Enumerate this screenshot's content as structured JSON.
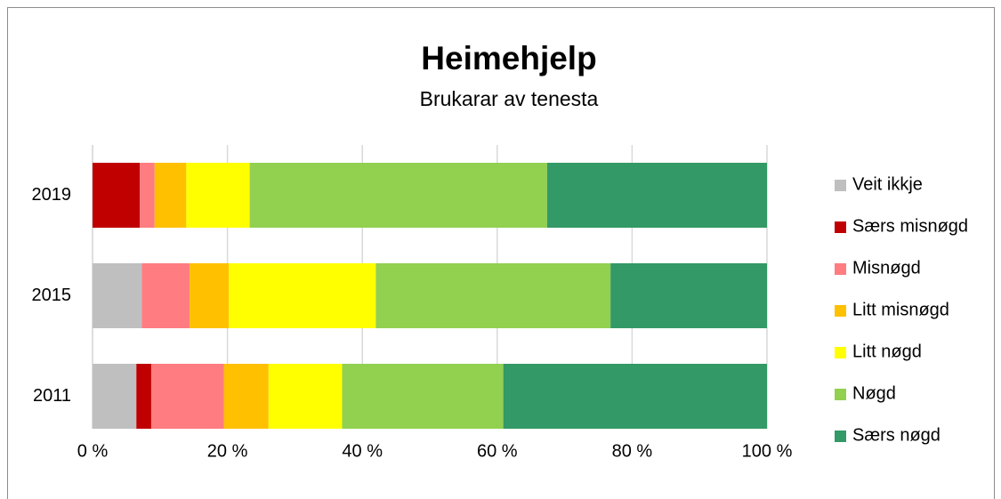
{
  "chart_data": {
    "type": "stacked-bar-horizontal",
    "title": "Heimehjelp",
    "subtitle": "Brukarar av tenesta",
    "categories": [
      "2019",
      "2015",
      "2011"
    ],
    "series": [
      {
        "name": "Veit ikkje",
        "color": "#bfbfbf",
        "values": [
          0,
          7.3,
          6.5
        ]
      },
      {
        "name": "Særs misnøgd",
        "color": "#c00000",
        "values": [
          7.0,
          0,
          2.2
        ]
      },
      {
        "name": "Misnøgd",
        "color": "#ff7c80",
        "values": [
          2.2,
          7.1,
          10.8
        ]
      },
      {
        "name": "Litt misnøgd",
        "color": "#ffc000",
        "values": [
          4.7,
          5.8,
          6.6
        ]
      },
      {
        "name": "Litt nøgd",
        "color": "#ffff00",
        "values": [
          9.4,
          21.8,
          10.9
        ]
      },
      {
        "name": "Nøgd",
        "color": "#92d050",
        "values": [
          44.1,
          34.8,
          23.9
        ]
      },
      {
        "name": "Særs nøgd",
        "color": "#339966",
        "values": [
          32.6,
          23.2,
          39.1
        ]
      }
    ],
    "xlim": [
      0,
      100
    ],
    "xticks": [
      {
        "value": 0,
        "label": "0 %"
      },
      {
        "value": 20,
        "label": "20 %"
      },
      {
        "value": 40,
        "label": "40 %"
      },
      {
        "value": 60,
        "label": "60 %"
      },
      {
        "value": 80,
        "label": "80 %"
      },
      {
        "value": 100,
        "label": "100 %"
      }
    ],
    "grid": true,
    "legend": "right"
  }
}
